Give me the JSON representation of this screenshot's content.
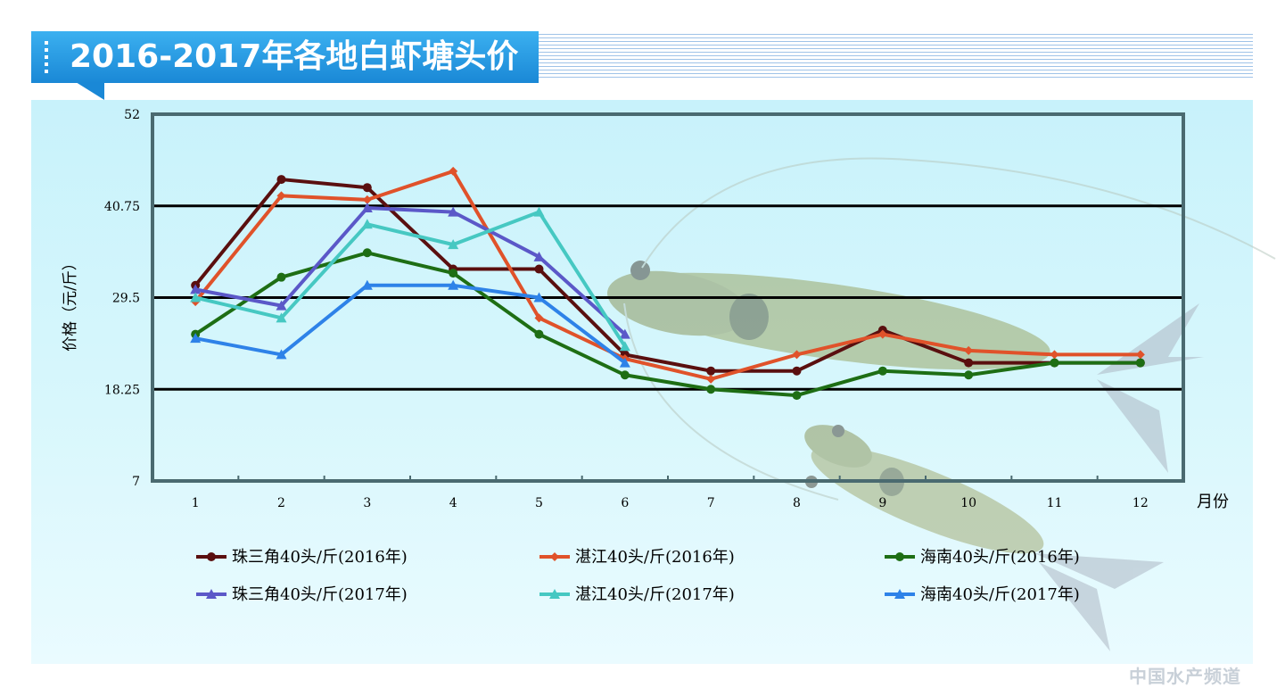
{
  "title": "2016-2017年各地白虾塘头价",
  "watermark": "中国水产频道",
  "chart_data": {
    "type": "line",
    "title": "2016-2017年各地白虾塘头价",
    "xlabel": "月份",
    "ylabel": "价格（元/斤）",
    "ylim": [
      7,
      52
    ],
    "yticks": [
      "7",
      "18.25",
      "29.5",
      "40.75",
      "52"
    ],
    "x": [
      1,
      2,
      3,
      4,
      5,
      6,
      7,
      8,
      9,
      10,
      11,
      12
    ],
    "gridlines": [
      18.25,
      29.5,
      40.75
    ],
    "legend_position": "bottom",
    "series": [
      {
        "name": "珠三角40头/斤(2016年)",
        "color": "#5a0f0f",
        "marker": "circle",
        "values": [
          31,
          44,
          43,
          33,
          33,
          22.5,
          20.5,
          20.5,
          25.5,
          21.5,
          21.5,
          21.5
        ]
      },
      {
        "name": "湛江40头/斤(2016年)",
        "color": "#e0522a",
        "marker": "diamond",
        "values": [
          29,
          42,
          41.5,
          45,
          27,
          22,
          19.5,
          22.5,
          25,
          23,
          22.5,
          22.5
        ]
      },
      {
        "name": "海南40头/斤(2016年)",
        "color": "#1e6e14",
        "marker": "circle",
        "values": [
          25,
          32,
          35,
          32.5,
          25,
          20,
          18.25,
          17.5,
          20.5,
          20,
          21.5,
          21.5
        ]
      },
      {
        "name": "珠三角40头/斤(2017年)",
        "color": "#5b58c8",
        "marker": "triangle",
        "values": [
          30.5,
          28.5,
          40.5,
          40,
          34.5,
          25,
          null,
          null,
          null,
          null,
          null,
          null
        ]
      },
      {
        "name": "湛江40头/斤(2017年)",
        "color": "#46c8c2",
        "marker": "triangle",
        "values": [
          29.5,
          27,
          38.5,
          36,
          40,
          23.5,
          null,
          null,
          null,
          null,
          null,
          null
        ]
      },
      {
        "name": "海南40头/斤(2017年)",
        "color": "#2e82e8",
        "marker": "triangle",
        "values": [
          24.5,
          22.5,
          31,
          31,
          29.5,
          21.5,
          null,
          null,
          null,
          null,
          null,
          null
        ]
      }
    ]
  }
}
